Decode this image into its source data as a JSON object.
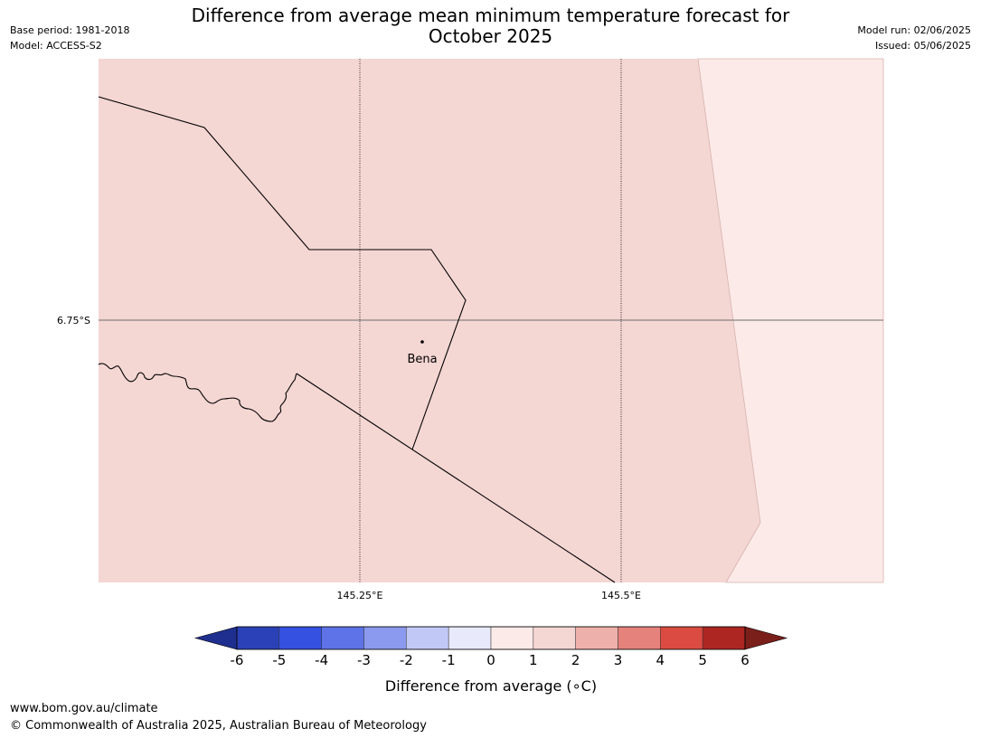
{
  "title": {
    "line1": "Difference from average mean minimum temperature forecast for",
    "line2": "October 2025"
  },
  "meta_left": {
    "base_period": "Base period: 1981-2018",
    "model": "Model: ACCESS-S2"
  },
  "meta_right": {
    "model_run": "Model run: 02/06/2025",
    "issued": "Issued: 05/06/2025"
  },
  "map": {
    "lat_labels": [
      "6.75°S"
    ],
    "lon_labels": [
      "145.25°E",
      "145.5°E"
    ],
    "places": [
      {
        "name": "Bena"
      }
    ],
    "fill_colors": {
      "band_1_2": "#f4d6d3",
      "band_0_1": "#fbeae8",
      "border": "#000000",
      "grid": "#000000"
    }
  },
  "colorbar": {
    "label": "Difference from average (∘C)",
    "ticks": [
      "-6",
      "-5",
      "-4",
      "-3",
      "-2",
      "-1",
      "0",
      "1",
      "2",
      "3",
      "4",
      "5",
      "6"
    ],
    "colors": [
      "#1f2f8f",
      "#2a41b8",
      "#3551e1",
      "#5d73e7",
      "#8b99ee",
      "#c2c8f6",
      "#e8eafc",
      "#fbeae8",
      "#f4d6d3",
      "#eeb0ab",
      "#e6827c",
      "#db4b41",
      "#ad2621",
      "#7a1f1a"
    ]
  },
  "footer": {
    "url": "www.bom.gov.au/climate",
    "copyright": "© Commonwealth of Australia 2025, Australian Bureau of Meteorology"
  }
}
